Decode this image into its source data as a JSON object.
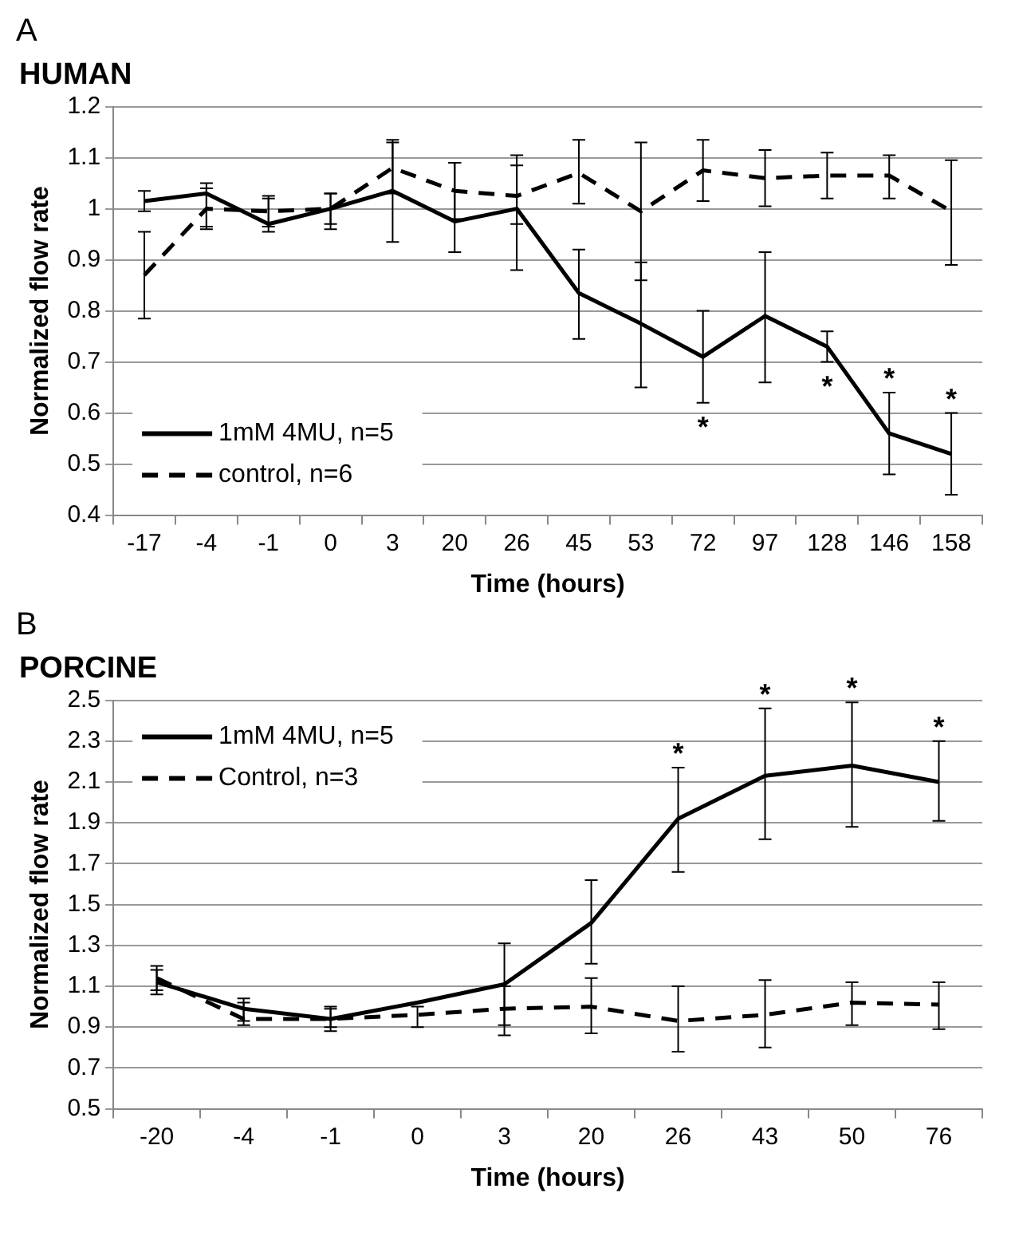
{
  "chart_data": [
    {
      "type": "line",
      "title": "HUMAN",
      "xlabel": "Time (hours)",
      "ylabel": "Normalized flow rate",
      "categories": [
        "-17",
        "-4",
        "-1",
        "0",
        "3",
        "20",
        "26",
        "45",
        "53",
        "72",
        "97",
        "128",
        "146",
        "158"
      ],
      "series": [
        {
          "name": "1mM 4MU, n=5",
          "color": "#000000",
          "line_style": "solid",
          "values": [
            1.015,
            1.03,
            0.97,
            1.0,
            1.035,
            0.975,
            1.0,
            0.835,
            0.775,
            0.71,
            0.79,
            0.73,
            0.56,
            0.52
          ],
          "errors": [
            [
              0.995,
              1.035
            ],
            [
              0.96,
              1.05
            ],
            [
              0.955,
              1.025
            ],
            [
              0.96,
              1.03
            ],
            [
              0.935,
              1.135
            ],
            [
              0.915,
              1.09
            ],
            [
              0.88,
              1.105
            ],
            [
              0.745,
              0.92
            ],
            [
              0.65,
              0.895
            ],
            [
              0.62,
              0.8
            ],
            [
              0.66,
              0.915
            ],
            [
              0.7,
              0.76
            ],
            [
              0.48,
              0.64
            ],
            [
              0.44,
              0.6
            ]
          ]
        },
        {
          "name": "control, n=6",
          "color": "#000000",
          "line_style": "dashed",
          "values": [
            0.87,
            1.0,
            0.995,
            1.0,
            1.08,
            1.035,
            1.025,
            1.07,
            0.995,
            1.075,
            1.06,
            1.065,
            1.065,
            0.995
          ],
          "errors": [
            [
              0.785,
              0.955
            ],
            [
              0.965,
              1.04
            ],
            [
              0.965,
              1.02
            ],
            [
              0.97,
              1.03
            ],
            [
              1.03,
              1.13
            ],
            [
              0.98,
              1.09
            ],
            [
              0.97,
              1.085
            ],
            [
              1.01,
              1.135
            ],
            [
              0.86,
              1.13
            ],
            [
              1.015,
              1.135
            ],
            [
              1.005,
              1.115
            ],
            [
              1.02,
              1.11
            ],
            [
              1.02,
              1.105
            ],
            [
              0.89,
              1.095
            ]
          ]
        }
      ],
      "annotations": [
        "A",
        {
          "text": "*",
          "x": "72",
          "y": 0.62
        },
        {
          "text": "*",
          "x": "128",
          "y": 0.7
        },
        {
          "text": "*",
          "x": "146",
          "y": 0.64
        },
        {
          "text": "*",
          "x": "158",
          "y": 0.6
        }
      ],
      "ylim": [
        0.4,
        1.2
      ],
      "yticks": [
        0.4,
        0.5,
        0.6,
        0.7,
        0.8,
        0.9,
        1,
        1.1,
        1.2
      ],
      "grid": "y",
      "legend": "bottom left",
      "marker": "none"
    },
    {
      "type": "line",
      "title": "PORCINE",
      "xlabel": "Time (hours)",
      "ylabel": "Normalized flow rate",
      "categories": [
        "-20",
        "-4",
        "-1",
        "0",
        "3",
        "20",
        "26",
        "43",
        "50",
        "76"
      ],
      "series": [
        {
          "name": "1mM 4MU, n=5",
          "color": "#000000",
          "line_style": "solid",
          "values": [
            1.12,
            0.99,
            0.94,
            1.02,
            1.11,
            1.41,
            1.92,
            2.13,
            2.18,
            2.1
          ],
          "errors": [
            [
              1.06,
              1.2
            ],
            [
              0.93,
              1.04
            ],
            [
              0.88,
              1.0
            ],
            null,
            [
              0.91,
              1.31
            ],
            [
              1.21,
              1.62
            ],
            [
              1.66,
              2.17
            ],
            [
              1.82,
              2.46
            ],
            [
              1.88,
              2.49
            ],
            [
              1.91,
              2.3
            ]
          ]
        },
        {
          "name": "Control, n=3",
          "color": "#000000",
          "line_style": "dashed",
          "values": [
            1.14,
            0.94,
            0.94,
            0.96,
            0.99,
            1.0,
            0.93,
            0.96,
            1.02,
            1.01
          ],
          "errors": [
            [
              1.08,
              1.18
            ],
            [
              0.91,
              1.02
            ],
            [
              0.9,
              0.99
            ],
            [
              0.9,
              1.0
            ],
            [
              0.86,
              1.1
            ],
            [
              0.87,
              1.14
            ],
            [
              0.78,
              1.1
            ],
            [
              0.8,
              1.13
            ],
            [
              0.91,
              1.12
            ],
            [
              0.89,
              1.12
            ]
          ]
        }
      ],
      "annotations": [
        "B",
        {
          "text": "*",
          "x": "26",
          "y": 2.17
        },
        {
          "text": "*",
          "x": "43",
          "y": 2.46
        },
        {
          "text": "*",
          "x": "50",
          "y": 2.49
        },
        {
          "text": "*",
          "x": "76",
          "y": 2.3
        }
      ],
      "ylim": [
        0.5,
        2.5
      ],
      "yticks": [
        0.5,
        0.7,
        0.9,
        1.1,
        1.3,
        1.5,
        1.7,
        1.9,
        2.1,
        2.3,
        2.5
      ],
      "grid": "y",
      "legend": "top left",
      "marker": "none"
    }
  ]
}
